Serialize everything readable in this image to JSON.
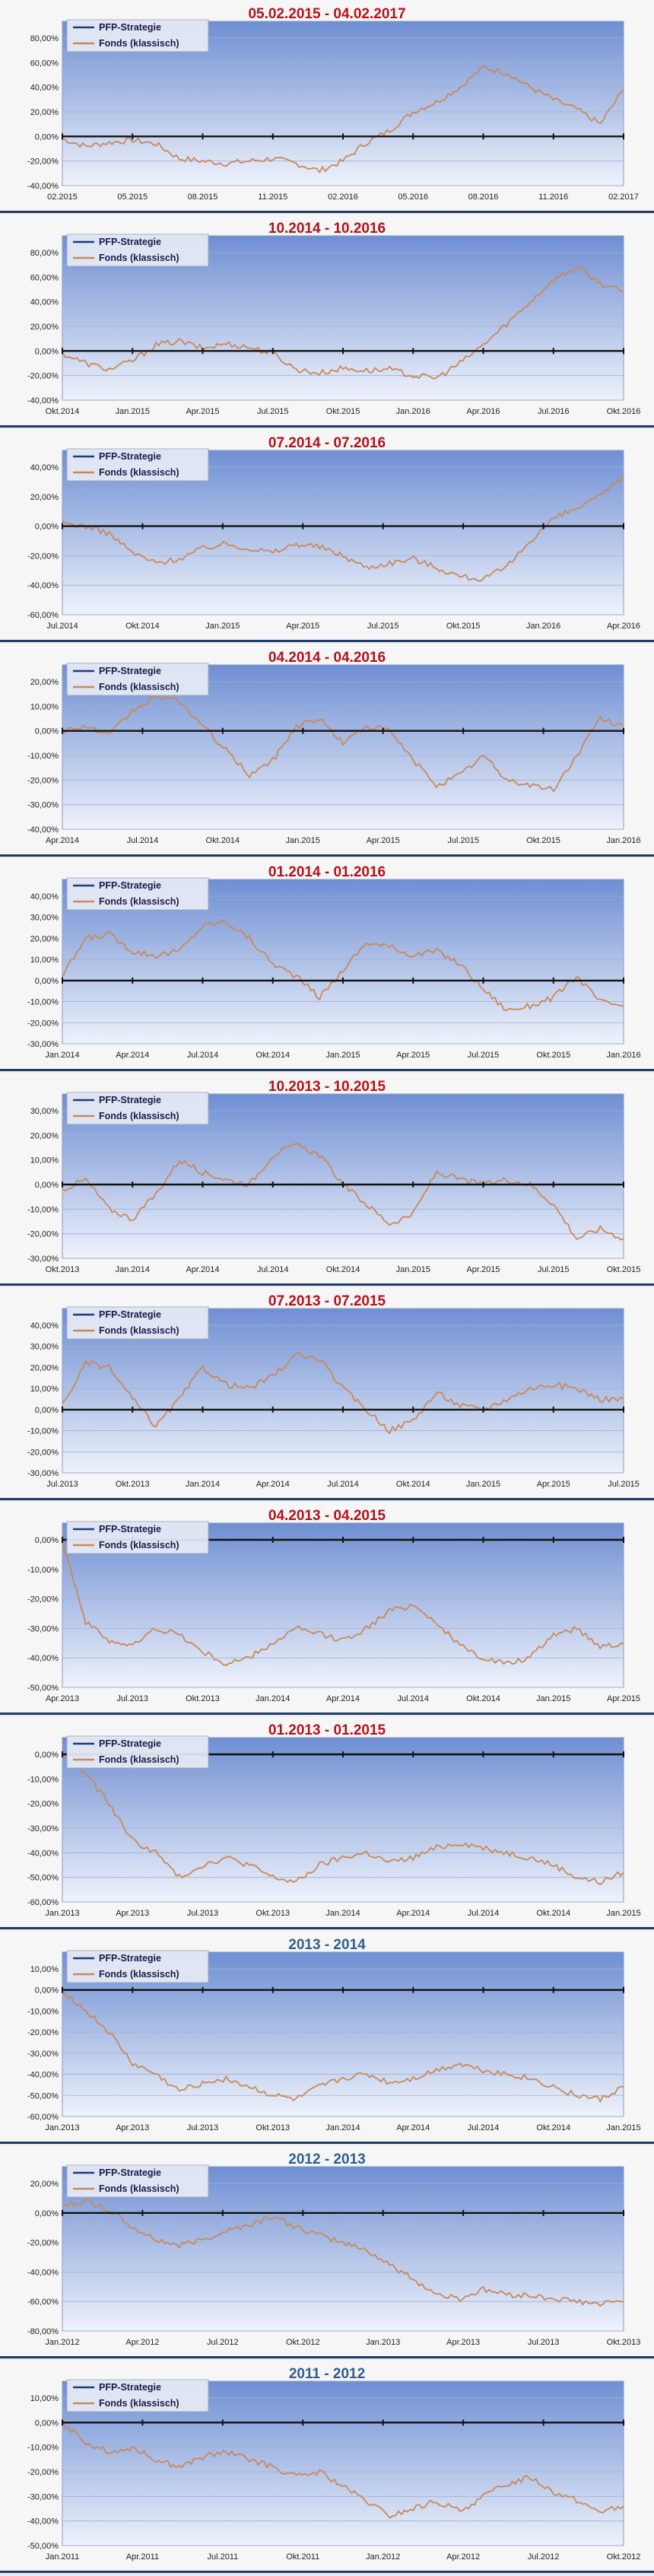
{
  "colors": {
    "strategy_line": "#1f3b7a",
    "fund_line": "#c8895a",
    "title_red": "#b3121b",
    "title_blue": "#2f5f8f",
    "plot_top": "#6f8fd3",
    "plot_bottom": "#eef2fb"
  },
  "legend": {
    "strategy": "PFP-Strategie",
    "fund": "Fonds (klassisch)"
  },
  "chart_data": [
    {
      "type": "line",
      "title": "05.02.2015 - 04.02.2017",
      "title_color": "red",
      "y_ticks": [
        "80,00%",
        "60,00%",
        "40,00%",
        "20,00%",
        "0,00%",
        "-20,00%",
        "-40,00%"
      ],
      "ylim": [
        -40,
        80
      ],
      "x_ticks": [
        "02.2015",
        "05.2015",
        "08.2015",
        "11.2015",
        "02.2016",
        "05.2016",
        "08.2016",
        "11.2016",
        "02.2017"
      ],
      "series": [
        {
          "name": "PFP-Strategie",
          "values": [
            0,
            0,
            0,
            0,
            0,
            0,
            0,
            0,
            0,
            0,
            0,
            0,
            0,
            0,
            0,
            0,
            0,
            0,
            0,
            0,
            0,
            0,
            0,
            0,
            0
          ]
        },
        {
          "name": "Fonds (klassisch)",
          "values": [
            -2,
            -8,
            -5,
            -3,
            -6,
            -18,
            -20,
            -22,
            -20,
            -18,
            -22,
            -28,
            -20,
            -5,
            5,
            20,
            28,
            40,
            56,
            52,
            40,
            30,
            22,
            10,
            38
          ]
        }
      ]
    },
    {
      "type": "line",
      "title": "10.2014 - 10.2016",
      "title_color": "red",
      "y_ticks": [
        "80,00%",
        "60,00%",
        "40,00%",
        "20,00%",
        "0,00%",
        "-20,00%",
        "-40,00%"
      ],
      "ylim": [
        -40,
        80
      ],
      "x_ticks": [
        "Okt.2014",
        "Jan.2015",
        "Apr.2015",
        "Jul.2015",
        "Okt.2015",
        "Jan.2016",
        "Apr.2016",
        "Jul.2016",
        "Okt.2016"
      ],
      "series": [
        {
          "name": "PFP-Strategie",
          "values": [
            0,
            0,
            0,
            0,
            0,
            0,
            0,
            0,
            0,
            0,
            0,
            0,
            0,
            0,
            0,
            0,
            0,
            0,
            0,
            0,
            0,
            0,
            0,
            0,
            0
          ]
        },
        {
          "name": "Fonds (klassisch)",
          "values": [
            -2,
            -10,
            -15,
            -8,
            5,
            8,
            2,
            6,
            3,
            -2,
            -15,
            -18,
            -14,
            -16,
            -15,
            -20,
            -22,
            -10,
            5,
            22,
            40,
            58,
            68,
            55,
            48
          ]
        }
      ]
    },
    {
      "type": "line",
      "title": "07.2014 - 07.2016",
      "title_color": "red",
      "y_ticks": [
        "40,00%",
        "20,00%",
        "0,00%",
        "-20,00%",
        "-40,00%",
        "-60,00%"
      ],
      "ylim": [
        -60,
        40
      ],
      "x_ticks": [
        "Jul.2014",
        "Okt.2014",
        "Jan.2015",
        "Apr.2015",
        "Jul.2015",
        "Okt.2015",
        "Jan.2016",
        "Apr.2016"
      ],
      "series": [
        {
          "name": "PFP-Strategie",
          "values": [
            0,
            0,
            0,
            0,
            0,
            0,
            0,
            0,
            0,
            0,
            0,
            0,
            0,
            0,
            0,
            0,
            0,
            0,
            0,
            0,
            0,
            0,
            0,
            0,
            0
          ]
        },
        {
          "name": "Fonds (klassisch)",
          "values": [
            2,
            0,
            -5,
            -18,
            -25,
            -22,
            -15,
            -12,
            -15,
            -18,
            -12,
            -14,
            -20,
            -28,
            -25,
            -22,
            -28,
            -34,
            -36,
            -28,
            -10,
            5,
            12,
            20,
            34
          ]
        }
      ]
    },
    {
      "type": "line",
      "title": "04.2014 - 04.2016",
      "title_color": "red",
      "y_ticks": [
        "20,00%",
        "10,00%",
        "0,00%",
        "-10,00%",
        "-20,00%",
        "-30,00%",
        "-40,00%"
      ],
      "ylim": [
        -40,
        20
      ],
      "x_ticks": [
        "Apr.2014",
        "Jul.2014",
        "Okt.2014",
        "Jan.2015",
        "Apr.2015",
        "Jul.2015",
        "Okt.2015",
        "Jan.2016"
      ],
      "series": [
        {
          "name": "PFP-Strategie",
          "values": [
            0,
            0,
            0,
            0,
            0,
            0,
            0,
            0,
            0,
            0,
            0,
            0,
            0,
            0,
            0,
            0,
            0,
            0,
            0,
            0,
            0,
            0,
            0,
            0,
            0
          ]
        },
        {
          "name": "Fonds (klassisch)",
          "values": [
            0,
            2,
            -2,
            8,
            14,
            12,
            2,
            -8,
            -18,
            -12,
            2,
            5,
            -5,
            2,
            0,
            -12,
            -22,
            -18,
            -10,
            -20,
            -22,
            -24,
            -10,
            5,
            2
          ]
        }
      ]
    },
    {
      "type": "line",
      "title": "01.2014 - 01.2016",
      "title_color": "red",
      "y_ticks": [
        "40,00%",
        "30,00%",
        "20,00%",
        "10,00%",
        "0,00%",
        "-10,00%",
        "-20,00%",
        "-30,00%"
      ],
      "ylim": [
        -30,
        40
      ],
      "x_ticks": [
        "Jan.2014",
        "Apr.2014",
        "Jul.2014",
        "Okt.2014",
        "Jan.2015",
        "Apr.2015",
        "Jul.2015",
        "Okt.2015",
        "Jan.2016"
      ],
      "series": [
        {
          "name": "PFP-Strategie",
          "values": [
            0,
            0,
            0,
            0,
            0,
            0,
            0,
            0,
            0,
            0,
            0,
            0,
            0,
            0,
            0,
            0,
            0,
            0,
            0,
            0,
            0,
            0,
            0,
            0,
            0
          ]
        },
        {
          "name": "Fonds (klassisch)",
          "values": [
            2,
            20,
            22,
            14,
            12,
            14,
            26,
            28,
            20,
            8,
            2,
            -8,
            5,
            18,
            16,
            12,
            14,
            8,
            -4,
            -14,
            -12,
            -8,
            2,
            -10,
            -12
          ]
        }
      ]
    },
    {
      "type": "line",
      "title": "10.2013 - 10.2015",
      "title_color": "red",
      "y_ticks": [
        "30,00%",
        "20,00%",
        "10,00%",
        "0,00%",
        "-10,00%",
        "-20,00%",
        "-30,00%"
      ],
      "ylim": [
        -30,
        30
      ],
      "x_ticks": [
        "Okt.2013",
        "Jan.2014",
        "Apr.2014",
        "Jul.2014",
        "Okt.2014",
        "Jan.2015",
        "Apr.2015",
        "Jul.2015",
        "Okt.2015"
      ],
      "series": [
        {
          "name": "PFP-Strategie",
          "values": [
            0,
            0,
            0,
            0,
            0,
            0,
            0,
            0,
            0,
            0,
            0,
            0,
            0,
            0,
            0,
            0,
            0,
            0,
            0,
            0,
            0,
            0,
            0,
            0,
            0
          ]
        },
        {
          "name": "Fonds (klassisch)",
          "values": [
            -2,
            2,
            -10,
            -14,
            -4,
            10,
            5,
            2,
            0,
            12,
            16,
            12,
            0,
            -8,
            -16,
            -12,
            5,
            2,
            0,
            2,
            0,
            -8,
            -22,
            -18,
            -22
          ]
        }
      ]
    },
    {
      "type": "line",
      "title": "07.2013 - 07.2015",
      "title_color": "red",
      "y_ticks": [
        "40,00%",
        "30,00%",
        "20,00%",
        "10,00%",
        "0,00%",
        "-10,00%",
        "-20,00%",
        "-30,00%"
      ],
      "ylim": [
        -30,
        40
      ],
      "x_ticks": [
        "Jul.2013",
        "Okt.2013",
        "Jan.2014",
        "Apr.2014",
        "Jul.2014",
        "Okt.2014",
        "Jan.2015",
        "Apr.2015",
        "Jul.2015"
      ],
      "series": [
        {
          "name": "PFP-Strategie",
          "values": [
            0,
            0,
            0,
            0,
            0,
            0,
            0,
            0,
            0,
            0,
            0,
            0,
            0,
            0,
            0,
            0,
            0,
            0,
            0,
            0,
            0,
            0,
            0,
            0,
            0
          ]
        },
        {
          "name": "Fonds (klassisch)",
          "values": [
            2,
            22,
            20,
            5,
            -8,
            5,
            20,
            12,
            10,
            16,
            26,
            24,
            10,
            0,
            -10,
            -5,
            8,
            2,
            0,
            5,
            10,
            12,
            10,
            5,
            5
          ]
        }
      ]
    },
    {
      "type": "line",
      "title": "04.2013 - 04.2015",
      "title_color": "red",
      "y_ticks": [
        "0,00%",
        "-10,00%",
        "-20,00%",
        "-30,00%",
        "-40,00%",
        "-50,00%"
      ],
      "ylim": [
        -50,
        0
      ],
      "x_ticks": [
        "Apr.2013",
        "Jul.2013",
        "Okt.2013",
        "Jan.2014",
        "Apr.2014",
        "Jul.2014",
        "Okt.2014",
        "Jan.2015",
        "Apr.2015"
      ],
      "series": [
        {
          "name": "PFP-Strategie",
          "values": [
            0,
            0,
            0,
            0,
            0,
            0,
            0,
            0,
            0,
            0,
            0,
            0,
            0,
            0,
            0,
            0,
            0,
            0,
            0,
            0,
            0,
            0,
            0,
            0,
            0
          ]
        },
        {
          "name": "Fonds (klassisch)",
          "values": [
            0,
            -28,
            -34,
            -36,
            -30,
            -32,
            -38,
            -42,
            -40,
            -35,
            -30,
            -32,
            -34,
            -30,
            -24,
            -22,
            -28,
            -36,
            -40,
            -42,
            -40,
            -32,
            -30,
            -36,
            -35
          ]
        }
      ]
    },
    {
      "type": "line",
      "title": "01.2013 - 01.2015",
      "title_color": "red",
      "y_ticks": [
        "0,00%",
        "-10,00%",
        "-20,00%",
        "-30,00%",
        "-40,00%",
        "-50,00%",
        "-60,00%"
      ],
      "ylim": [
        -60,
        0
      ],
      "x_ticks": [
        "Jan.2013",
        "Apr.2013",
        "Jul.2013",
        "Okt.2013",
        "Jan.2014",
        "Apr.2014",
        "Jul.2014",
        "Okt.2014",
        "Jan.2015"
      ],
      "series": [
        {
          "name": "PFP-Strategie",
          "values": [
            0,
            0,
            0,
            0,
            0,
            0,
            0,
            0,
            0,
            0,
            0,
            0,
            0,
            0,
            0,
            0,
            0,
            0,
            0,
            0,
            0,
            0,
            0,
            0,
            0
          ]
        },
        {
          "name": "Fonds (klassisch)",
          "values": [
            0,
            -8,
            -20,
            -35,
            -40,
            -50,
            -45,
            -42,
            -45,
            -50,
            -52,
            -45,
            -42,
            -40,
            -44,
            -42,
            -38,
            -36,
            -38,
            -40,
            -42,
            -45,
            -50,
            -52,
            -48
          ]
        }
      ]
    },
    {
      "type": "line",
      "title": "2013 - 2014",
      "title_color": "blue",
      "y_ticks": [
        "10,00%",
        "0,00%",
        "-10,00%",
        "-20,00%",
        "-30,00%",
        "-40,00%",
        "-50,00%",
        "-60,00%"
      ],
      "ylim": [
        -60,
        10
      ],
      "x_ticks": [
        "Jan.2013",
        "Apr.2013",
        "Jul.2013",
        "Okt.2013",
        "Jan.2014",
        "Apr.2014",
        "Jul.2014",
        "Okt.2014",
        "Jan.2015"
      ],
      "series": [
        {
          "name": "PFP-Strategie",
          "values": [
            0,
            0,
            0,
            0,
            0,
            0,
            0,
            0,
            0,
            0,
            0,
            0,
            0,
            0,
            0,
            0,
            0,
            0,
            0,
            0,
            0,
            0,
            0,
            0,
            0
          ]
        },
        {
          "name": "Fonds (klassisch)",
          "values": [
            0,
            -10,
            -20,
            -35,
            -40,
            -48,
            -44,
            -42,
            -46,
            -50,
            -52,
            -46,
            -42,
            -40,
            -44,
            -42,
            -38,
            -35,
            -38,
            -40,
            -42,
            -46,
            -50,
            -52,
            -46
          ]
        }
      ]
    },
    {
      "type": "line",
      "title": "2012 - 2013",
      "title_color": "blue",
      "y_ticks": [
        "20,00%",
        "0,00%",
        "-20,00%",
        "-40,00%",
        "-60,00%",
        "-80,00%"
      ],
      "ylim": [
        -80,
        20
      ],
      "x_ticks": [
        "Jan.2012",
        "Apr.2012",
        "Jul.2012",
        "Okt.2012",
        "Jan.2013",
        "Apr.2013",
        "Jul.2013",
        "Okt.2013"
      ],
      "series": [
        {
          "name": "PFP-Strategie",
          "values": [
            0,
            0,
            0,
            0,
            0,
            0,
            0,
            0,
            0,
            0,
            0,
            0,
            0,
            0,
            0,
            0,
            0,
            0,
            0,
            0,
            0,
            0,
            0,
            0,
            0
          ]
        },
        {
          "name": "Fonds (klassisch)",
          "values": [
            5,
            8,
            2,
            -10,
            -18,
            -22,
            -18,
            -12,
            -8,
            -2,
            -10,
            -15,
            -20,
            -25,
            -35,
            -45,
            -55,
            -58,
            -52,
            -55,
            -56,
            -58,
            -60,
            -62,
            -60
          ]
        }
      ]
    },
    {
      "type": "line",
      "title": "2011 - 2012",
      "title_color": "blue",
      "y_ticks": [
        "10,00%",
        "0,00%",
        "-10,00%",
        "-20,00%",
        "-30,00%",
        "-40,00%",
        "-50,00%"
      ],
      "ylim": [
        -50,
        10
      ],
      "x_ticks": [
        "Jan.2011",
        "Apr.2011",
        "Jul.2011",
        "Okt.2011",
        "Jan.2012",
        "Apr.2012",
        "Jul.2012",
        "Okt.2012"
      ],
      "series": [
        {
          "name": "PFP-Strategie",
          "values": [
            0,
            0,
            0,
            0,
            0,
            0,
            0,
            0,
            0,
            0,
            0,
            0,
            0,
            0,
            0,
            0,
            0,
            0,
            0,
            0,
            0,
            0,
            0,
            0,
            0
          ]
        },
        {
          "name": "Fonds (klassisch)",
          "values": [
            0,
            -8,
            -12,
            -10,
            -15,
            -18,
            -14,
            -12,
            -15,
            -18,
            -22,
            -20,
            -26,
            -32,
            -38,
            -35,
            -32,
            -36,
            -30,
            -25,
            -22,
            -28,
            -32,
            -36,
            -34
          ]
        }
      ]
    }
  ]
}
